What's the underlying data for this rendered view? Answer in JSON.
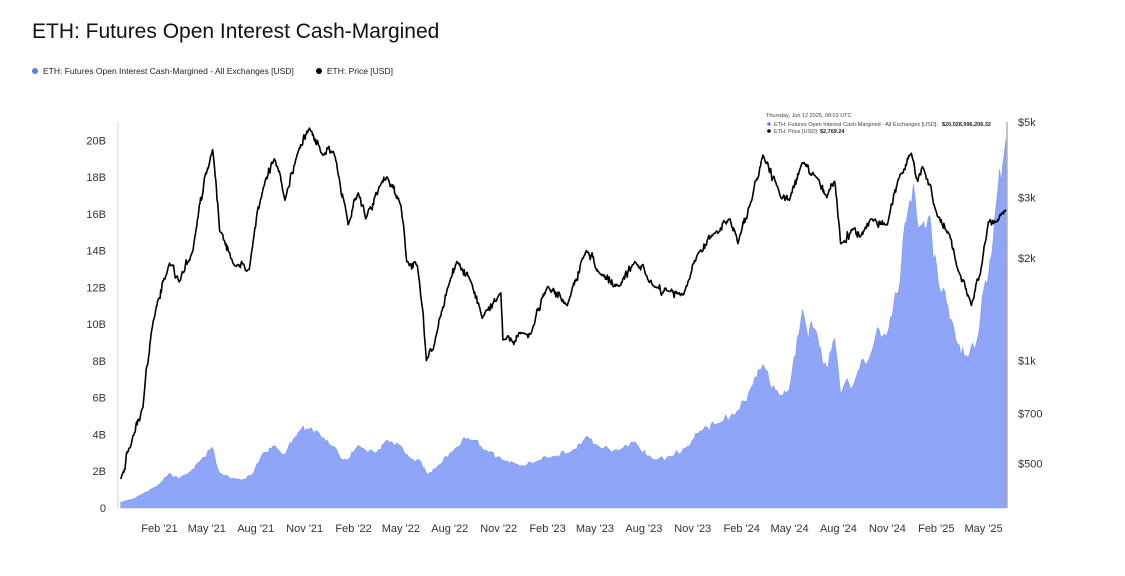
{
  "title": "ETH: Futures Open Interest Cash-Margined",
  "legend": [
    {
      "label": "ETH: Futures Open Interest Cash-Margined - All Exchanges [USD]",
      "color": "#5b7cf5"
    },
    {
      "label": "ETH: Price [USD]",
      "color": "#000000"
    }
  ],
  "tooltip": {
    "date": "Thursday, Jun 12 2025, 08:03 UTC",
    "oi_label": "ETH: Futures Open Interest Cash-Margined - All Exchanges [USD]:",
    "oi_value": "$20,028,996,206.32",
    "price_label": "ETH: Price [USD]:",
    "price_value": "$2,769.24"
  },
  "chart_data": {
    "type": "area",
    "colors": {
      "open_interest_fill": "#8fa6f8",
      "open_interest_line": "#7b95f4",
      "price_line": "#000000"
    },
    "x_ticks": [
      "Feb '21",
      "May '21",
      "Aug '21",
      "Nov '21",
      "Feb '22",
      "May '22",
      "Aug '22",
      "Nov '22",
      "Feb '23",
      "May '23",
      "Aug '23",
      "Nov '23",
      "Feb '24",
      "May '24",
      "Aug '24",
      "Nov '24",
      "Feb '25",
      "May '25"
    ],
    "y_left": {
      "ticks": [
        "0",
        "2B",
        "4B",
        "6B",
        "8B",
        "10B",
        "12B",
        "14B",
        "16B",
        "18B",
        "20B"
      ],
      "range": [
        0,
        21000000000
      ]
    },
    "y_right": {
      "ticks": [
        "$500",
        "$700",
        "$1k",
        "$2k",
        "$3k",
        "$5k"
      ],
      "tick_values": [
        500,
        700,
        1000,
        2000,
        3000,
        5000
      ],
      "scale": "log",
      "range": [
        370,
        5000
      ]
    },
    "series": [
      {
        "name": "ETH: Futures Open Interest Cash-Margined - All Exchanges [USD]",
        "axis": "left",
        "points": [
          [
            "2020-11-20",
            0.3
          ],
          [
            "2020-12-15",
            0.5
          ],
          [
            "2021-01-10",
            0.9
          ],
          [
            "2021-02-01",
            1.3
          ],
          [
            "2021-02-20",
            1.9
          ],
          [
            "2021-03-10",
            1.6
          ],
          [
            "2021-04-01",
            2.0
          ],
          [
            "2021-04-20",
            2.6
          ],
          [
            "2021-05-12",
            3.3
          ],
          [
            "2021-05-25",
            1.9
          ],
          [
            "2021-06-15",
            1.6
          ],
          [
            "2021-07-05",
            1.5
          ],
          [
            "2021-07-25",
            1.8
          ],
          [
            "2021-08-15",
            3.0
          ],
          [
            "2021-09-05",
            3.4
          ],
          [
            "2021-09-25",
            2.9
          ],
          [
            "2021-10-20",
            4.1
          ],
          [
            "2021-11-10",
            4.3
          ],
          [
            "2021-12-01",
            3.9
          ],
          [
            "2021-12-20",
            3.4
          ],
          [
            "2022-01-20",
            2.6
          ],
          [
            "2022-02-10",
            3.4
          ],
          [
            "2022-03-15",
            3.0
          ],
          [
            "2022-04-05",
            3.7
          ],
          [
            "2022-04-25",
            3.5
          ],
          [
            "2022-05-15",
            2.8
          ],
          [
            "2022-06-05",
            2.6
          ],
          [
            "2022-06-20",
            1.8
          ],
          [
            "2022-07-10",
            2.3
          ],
          [
            "2022-08-10",
            3.2
          ],
          [
            "2022-09-05",
            3.8
          ],
          [
            "2022-10-10",
            3.1
          ],
          [
            "2022-11-08",
            2.6
          ],
          [
            "2022-12-10",
            2.3
          ],
          [
            "2023-01-10",
            2.5
          ],
          [
            "2023-02-10",
            2.8
          ],
          [
            "2023-03-15",
            3.0
          ],
          [
            "2023-04-15",
            3.9
          ],
          [
            "2023-05-10",
            3.3
          ],
          [
            "2023-06-15",
            3.1
          ],
          [
            "2023-07-15",
            3.6
          ],
          [
            "2023-08-20",
            2.6
          ],
          [
            "2023-09-20",
            2.8
          ],
          [
            "2023-10-20",
            3.3
          ],
          [
            "2023-11-15",
            4.2
          ],
          [
            "2023-12-20",
            4.6
          ],
          [
            "2024-01-20",
            5.1
          ],
          [
            "2024-02-20",
            6.6
          ],
          [
            "2024-03-12",
            7.8
          ],
          [
            "2024-04-10",
            6.2
          ],
          [
            "2024-04-30",
            6.4
          ],
          [
            "2024-05-25",
            10.8
          ],
          [
            "2024-06-20",
            9.6
          ],
          [
            "2024-07-10",
            7.6
          ],
          [
            "2024-07-25",
            9.2
          ],
          [
            "2024-08-05",
            6.2
          ],
          [
            "2024-09-01",
            6.9
          ],
          [
            "2024-10-01",
            8.4
          ],
          [
            "2024-11-01",
            9.5
          ],
          [
            "2024-11-25",
            12.3
          ],
          [
            "2024-12-10",
            16.2
          ],
          [
            "2024-12-20",
            17.6
          ],
          [
            "2025-01-05",
            15.4
          ],
          [
            "2025-01-20",
            15.9
          ],
          [
            "2025-02-05",
            12.2
          ],
          [
            "2025-02-20",
            11.2
          ],
          [
            "2025-03-10",
            9.1
          ],
          [
            "2025-04-01",
            8.2
          ],
          [
            "2025-04-20",
            9.3
          ],
          [
            "2025-05-10",
            12.6
          ],
          [
            "2025-05-25",
            16.6
          ],
          [
            "2025-06-12",
            20.03
          ]
        ]
      },
      {
        "name": "ETH: Price [USD]",
        "axis": "right",
        "points": [
          [
            "2020-11-20",
            450
          ],
          [
            "2020-12-10",
            570
          ],
          [
            "2021-01-01",
            730
          ],
          [
            "2021-01-20",
            1300
          ],
          [
            "2021-02-20",
            1930
          ],
          [
            "2021-03-10",
            1700
          ],
          [
            "2021-04-05",
            2100
          ],
          [
            "2021-05-12",
            4150
          ],
          [
            "2021-05-25",
            2400
          ],
          [
            "2021-06-22",
            1900
          ],
          [
            "2021-07-20",
            1850
          ],
          [
            "2021-08-15",
            3200
          ],
          [
            "2021-09-05",
            3900
          ],
          [
            "2021-09-25",
            2950
          ],
          [
            "2021-10-20",
            4100
          ],
          [
            "2021-11-10",
            4800
          ],
          [
            "2021-12-05",
            4000
          ],
          [
            "2021-12-25",
            4100
          ],
          [
            "2022-01-22",
            2500
          ],
          [
            "2022-02-10",
            3100
          ],
          [
            "2022-02-24",
            2600
          ],
          [
            "2022-03-25",
            3300
          ],
          [
            "2022-04-05",
            3450
          ],
          [
            "2022-05-01",
            2850
          ],
          [
            "2022-05-12",
            1950
          ],
          [
            "2022-06-01",
            1900
          ],
          [
            "2022-06-18",
            1000
          ],
          [
            "2022-07-01",
            1080
          ],
          [
            "2022-08-01",
            1700
          ],
          [
            "2022-08-14",
            1950
          ],
          [
            "2022-09-10",
            1700
          ],
          [
            "2022-10-01",
            1330
          ],
          [
            "2022-11-05",
            1580
          ],
          [
            "2022-11-09",
            1150
          ],
          [
            "2022-12-20",
            1200
          ],
          [
            "2023-01-01",
            1200
          ],
          [
            "2023-02-01",
            1650
          ],
          [
            "2023-03-10",
            1450
          ],
          [
            "2023-04-15",
            2100
          ],
          [
            "2023-05-10",
            1800
          ],
          [
            "2023-06-15",
            1650
          ],
          [
            "2023-07-15",
            1950
          ],
          [
            "2023-08-20",
            1650
          ],
          [
            "2023-09-15",
            1600
          ],
          [
            "2023-10-15",
            1560
          ],
          [
            "2023-11-10",
            2050
          ],
          [
            "2023-12-10",
            2350
          ],
          [
            "2024-01-10",
            2600
          ],
          [
            "2024-01-25",
            2200
          ],
          [
            "2024-02-20",
            2950
          ],
          [
            "2024-03-12",
            4000
          ],
          [
            "2024-04-15",
            3000
          ],
          [
            "2024-05-01",
            2950
          ],
          [
            "2024-05-25",
            3800
          ],
          [
            "2024-06-20",
            3450
          ],
          [
            "2024-07-10",
            3000
          ],
          [
            "2024-07-25",
            3350
          ],
          [
            "2024-08-05",
            2200
          ],
          [
            "2024-09-01",
            2450
          ],
          [
            "2024-09-10",
            2300
          ],
          [
            "2024-10-01",
            2600
          ],
          [
            "2024-11-01",
            2500
          ],
          [
            "2024-11-25",
            3500
          ],
          [
            "2024-12-16",
            4050
          ],
          [
            "2024-12-28",
            3350
          ],
          [
            "2025-01-06",
            3700
          ],
          [
            "2025-02-03",
            2650
          ],
          [
            "2025-02-25",
            2350
          ],
          [
            "2025-03-11",
            1900
          ],
          [
            "2025-04-08",
            1450
          ],
          [
            "2025-04-25",
            1800
          ],
          [
            "2025-05-10",
            2550
          ],
          [
            "2025-05-25",
            2550
          ],
          [
            "2025-06-12",
            2769.24
          ]
        ]
      }
    ]
  }
}
